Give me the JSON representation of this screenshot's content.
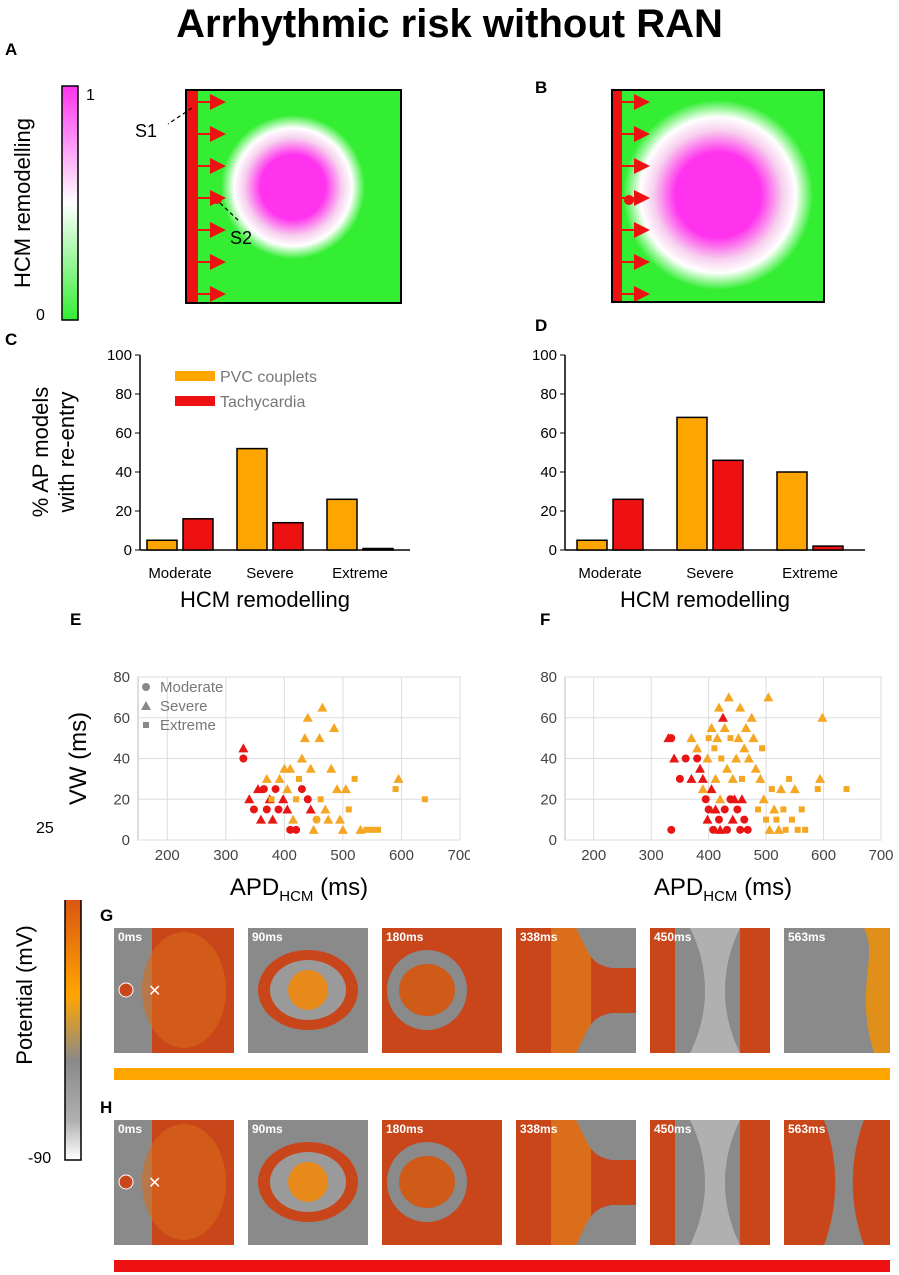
{
  "title": "Arrhythmic risk without RAN",
  "panel_labels": {
    "A": "A",
    "B": "B",
    "C": "C",
    "D": "D",
    "E": "E",
    "F": "F",
    "G": "G",
    "H": "H"
  },
  "colorbar_hcm": {
    "label": "HCM remodelling",
    "max": "1",
    "min": "0",
    "colors": [
      "#33ee33",
      "#ffffff",
      "#ff33ee"
    ]
  },
  "tissue": {
    "s1_label": "S1",
    "s2_label": "S2",
    "healthy_color": "#33ee33",
    "core_color": "#ff33ee",
    "stim_color": "#ee1111"
  },
  "colorbar_potential": {
    "label": "Potential (mV)",
    "max": "25",
    "min": "-90"
  },
  "colors": {
    "pvc": "#ffa500",
    "tachy": "#ee1111",
    "scatter_orange": "#f5a623",
    "scatter_red": "#e81515"
  },
  "snapshot_times": [
    "0ms",
    "90ms",
    "180ms",
    "338ms",
    "450ms",
    "563ms"
  ],
  "chart_data": [
    {
      "id": "C",
      "type": "bar",
      "categories": [
        "Moderate",
        "Severe",
        "Extreme"
      ],
      "series": [
        {
          "name": "PVC couplets",
          "values": [
            5,
            52,
            26
          ]
        },
        {
          "name": "Tachycardia",
          "values": [
            16,
            14,
            0.5
          ]
        }
      ],
      "ylabel": "% AP models with re-entry",
      "xlabel": "HCM remodelling",
      "ylim": [
        0,
        100
      ],
      "yticks": [
        "0",
        "20",
        "40",
        "60",
        "80",
        "100"
      ],
      "legend": "top-left"
    },
    {
      "id": "D",
      "type": "bar",
      "categories": [
        "Moderate",
        "Severe",
        "Extreme"
      ],
      "series": [
        {
          "name": "PVC couplets",
          "values": [
            5,
            68,
            40
          ]
        },
        {
          "name": "Tachycardia",
          "values": [
            26,
            46,
            2
          ]
        }
      ],
      "ylabel": "",
      "xlabel": "HCM remodelling",
      "ylim": [
        0,
        100
      ],
      "yticks": [
        "0",
        "20",
        "40",
        "60",
        "80",
        "100"
      ]
    },
    {
      "id": "E",
      "type": "scatter",
      "ylabel": "VW (ms)",
      "xlabel_main": "APD",
      "xlabel_sub": "HCM",
      "xlabel_unit": "(ms)",
      "xlim": [
        150,
        700
      ],
      "ylim": [
        0,
        80
      ],
      "xticks": [
        "200",
        "300",
        "400",
        "500",
        "600",
        "700"
      ],
      "yticks": [
        "0",
        "20",
        "40",
        "60",
        "80"
      ],
      "legend": [
        "Moderate",
        "Severe",
        "Extreme"
      ],
      "points": [
        {
          "x": 330,
          "y": 45,
          "s": "t",
          "c": "r"
        },
        {
          "x": 330,
          "y": 40,
          "s": "c",
          "c": "r"
        },
        {
          "x": 340,
          "y": 20,
          "s": "t",
          "c": "r"
        },
        {
          "x": 348,
          "y": 15,
          "s": "c",
          "c": "r"
        },
        {
          "x": 355,
          "y": 25,
          "s": "t",
          "c": "r"
        },
        {
          "x": 360,
          "y": 10,
          "s": "t",
          "c": "r"
        },
        {
          "x": 365,
          "y": 25,
          "s": "c",
          "c": "r"
        },
        {
          "x": 370,
          "y": 15,
          "s": "c",
          "c": "r"
        },
        {
          "x": 375,
          "y": 20,
          "s": "t",
          "c": "r"
        },
        {
          "x": 380,
          "y": 10,
          "s": "t",
          "c": "r"
        },
        {
          "x": 385,
          "y": 25,
          "s": "c",
          "c": "r"
        },
        {
          "x": 390,
          "y": 15,
          "s": "c",
          "c": "r"
        },
        {
          "x": 398,
          "y": 20,
          "s": "t",
          "c": "r"
        },
        {
          "x": 405,
          "y": 15,
          "s": "t",
          "c": "r"
        },
        {
          "x": 410,
          "y": 5,
          "s": "c",
          "c": "r"
        },
        {
          "x": 420,
          "y": 5,
          "s": "c",
          "c": "r"
        },
        {
          "x": 430,
          "y": 25,
          "s": "c",
          "c": "r"
        },
        {
          "x": 440,
          "y": 20,
          "s": "c",
          "c": "r"
        },
        {
          "x": 445,
          "y": 15,
          "s": "t",
          "c": "r"
        },
        {
          "x": 370,
          "y": 30,
          "s": "t",
          "c": "o"
        },
        {
          "x": 378,
          "y": 20,
          "s": "s",
          "c": "o"
        },
        {
          "x": 392,
          "y": 30,
          "s": "t",
          "c": "o"
        },
        {
          "x": 400,
          "y": 35,
          "s": "t",
          "c": "o"
        },
        {
          "x": 405,
          "y": 25,
          "s": "t",
          "c": "o"
        },
        {
          "x": 410,
          "y": 35,
          "s": "t",
          "c": "o"
        },
        {
          "x": 415,
          "y": 10,
          "s": "t",
          "c": "o"
        },
        {
          "x": 420,
          "y": 20,
          "s": "s",
          "c": "o"
        },
        {
          "x": 425,
          "y": 30,
          "s": "s",
          "c": "o"
        },
        {
          "x": 430,
          "y": 40,
          "s": "t",
          "c": "o"
        },
        {
          "x": 435,
          "y": 50,
          "s": "t",
          "c": "o"
        },
        {
          "x": 440,
          "y": 60,
          "s": "t",
          "c": "o"
        },
        {
          "x": 445,
          "y": 35,
          "s": "t",
          "c": "o"
        },
        {
          "x": 450,
          "y": 5,
          "s": "t",
          "c": "o"
        },
        {
          "x": 455,
          "y": 10,
          "s": "c",
          "c": "o"
        },
        {
          "x": 460,
          "y": 50,
          "s": "t",
          "c": "o"
        },
        {
          "x": 462,
          "y": 20,
          "s": "s",
          "c": "o"
        },
        {
          "x": 465,
          "y": 65,
          "s": "t",
          "c": "o"
        },
        {
          "x": 470,
          "y": 15,
          "s": "t",
          "c": "o"
        },
        {
          "x": 475,
          "y": 10,
          "s": "t",
          "c": "o"
        },
        {
          "x": 480,
          "y": 35,
          "s": "t",
          "c": "o"
        },
        {
          "x": 485,
          "y": 55,
          "s": "t",
          "c": "o"
        },
        {
          "x": 490,
          "y": 25,
          "s": "t",
          "c": "o"
        },
        {
          "x": 495,
          "y": 10,
          "s": "t",
          "c": "o"
        },
        {
          "x": 500,
          "y": 5,
          "s": "t",
          "c": "o"
        },
        {
          "x": 505,
          "y": 25,
          "s": "t",
          "c": "o"
        },
        {
          "x": 510,
          "y": 15,
          "s": "s",
          "c": "o"
        },
        {
          "x": 520,
          "y": 30,
          "s": "s",
          "c": "o"
        },
        {
          "x": 530,
          "y": 5,
          "s": "t",
          "c": "o"
        },
        {
          "x": 540,
          "y": 5,
          "s": "s",
          "c": "o"
        },
        {
          "x": 550,
          "y": 5,
          "s": "s",
          "c": "o"
        },
        {
          "x": 560,
          "y": 5,
          "s": "s",
          "c": "o"
        },
        {
          "x": 590,
          "y": 25,
          "s": "s",
          "c": "o"
        },
        {
          "x": 595,
          "y": 30,
          "s": "t",
          "c": "o"
        },
        {
          "x": 640,
          "y": 20,
          "s": "s",
          "c": "o"
        }
      ]
    },
    {
      "id": "F",
      "type": "scatter",
      "ylabel": "",
      "xlabel_main": "APD",
      "xlabel_sub": "HCM",
      "xlabel_unit": "(ms)",
      "xlim": [
        150,
        700
      ],
      "ylim": [
        0,
        80
      ],
      "xticks": [
        "200",
        "300",
        "400",
        "500",
        "600",
        "700"
      ],
      "yticks": [
        "0",
        "20",
        "40",
        "60",
        "80"
      ],
      "points": [
        {
          "x": 330,
          "y": 50,
          "s": "t",
          "c": "r"
        },
        {
          "x": 335,
          "y": 50,
          "s": "c",
          "c": "r"
        },
        {
          "x": 340,
          "y": 40,
          "s": "t",
          "c": "r"
        },
        {
          "x": 335,
          "y": 5,
          "s": "c",
          "c": "r"
        },
        {
          "x": 350,
          "y": 30,
          "s": "c",
          "c": "r"
        },
        {
          "x": 360,
          "y": 40,
          "s": "c",
          "c": "r"
        },
        {
          "x": 370,
          "y": 30,
          "s": "t",
          "c": "r"
        },
        {
          "x": 380,
          "y": 40,
          "s": "c",
          "c": "r"
        },
        {
          "x": 385,
          "y": 35,
          "s": "t",
          "c": "r"
        },
        {
          "x": 390,
          "y": 30,
          "s": "t",
          "c": "r"
        },
        {
          "x": 395,
          "y": 20,
          "s": "c",
          "c": "r"
        },
        {
          "x": 398,
          "y": 10,
          "s": "t",
          "c": "r"
        },
        {
          "x": 400,
          "y": 15,
          "s": "c",
          "c": "r"
        },
        {
          "x": 405,
          "y": 25,
          "s": "t",
          "c": "r"
        },
        {
          "x": 408,
          "y": 5,
          "s": "c",
          "c": "r"
        },
        {
          "x": 412,
          "y": 15,
          "s": "t",
          "c": "r"
        },
        {
          "x": 418,
          "y": 10,
          "s": "c",
          "c": "r"
        },
        {
          "x": 420,
          "y": 5,
          "s": "t",
          "c": "r"
        },
        {
          "x": 425,
          "y": 60,
          "s": "t",
          "c": "r"
        },
        {
          "x": 428,
          "y": 15,
          "s": "c",
          "c": "r"
        },
        {
          "x": 432,
          "y": 5,
          "s": "c",
          "c": "r"
        },
        {
          "x": 438,
          "y": 20,
          "s": "c",
          "c": "r"
        },
        {
          "x": 442,
          "y": 10,
          "s": "t",
          "c": "r"
        },
        {
          "x": 445,
          "y": 20,
          "s": "t",
          "c": "r"
        },
        {
          "x": 450,
          "y": 15,
          "s": "c",
          "c": "r"
        },
        {
          "x": 455,
          "y": 5,
          "s": "c",
          "c": "r"
        },
        {
          "x": 458,
          "y": 20,
          "s": "t",
          "c": "r"
        },
        {
          "x": 462,
          "y": 10,
          "s": "c",
          "c": "r"
        },
        {
          "x": 468,
          "y": 5,
          "s": "c",
          "c": "r"
        },
        {
          "x": 370,
          "y": 50,
          "s": "t",
          "c": "o"
        },
        {
          "x": 380,
          "y": 45,
          "s": "t",
          "c": "o"
        },
        {
          "x": 390,
          "y": 25,
          "s": "t",
          "c": "o"
        },
        {
          "x": 398,
          "y": 40,
          "s": "t",
          "c": "o"
        },
        {
          "x": 400,
          "y": 50,
          "s": "s",
          "c": "o"
        },
        {
          "x": 405,
          "y": 55,
          "s": "t",
          "c": "o"
        },
        {
          "x": 410,
          "y": 45,
          "s": "s",
          "c": "o"
        },
        {
          "x": 412,
          "y": 30,
          "s": "t",
          "c": "o"
        },
        {
          "x": 415,
          "y": 50,
          "s": "t",
          "c": "o"
        },
        {
          "x": 418,
          "y": 65,
          "s": "t",
          "c": "o"
        },
        {
          "x": 420,
          "y": 20,
          "s": "t",
          "c": "o"
        },
        {
          "x": 422,
          "y": 40,
          "s": "s",
          "c": "o"
        },
        {
          "x": 428,
          "y": 55,
          "s": "t",
          "c": "o"
        },
        {
          "x": 432,
          "y": 35,
          "s": "t",
          "c": "o"
        },
        {
          "x": 435,
          "y": 70,
          "s": "t",
          "c": "o"
        },
        {
          "x": 438,
          "y": 50,
          "s": "s",
          "c": "o"
        },
        {
          "x": 442,
          "y": 30,
          "s": "t",
          "c": "o"
        },
        {
          "x": 448,
          "y": 40,
          "s": "t",
          "c": "o"
        },
        {
          "x": 452,
          "y": 50,
          "s": "t",
          "c": "o"
        },
        {
          "x": 455,
          "y": 65,
          "s": "t",
          "c": "o"
        },
        {
          "x": 458,
          "y": 30,
          "s": "s",
          "c": "o"
        },
        {
          "x": 462,
          "y": 45,
          "s": "t",
          "c": "o"
        },
        {
          "x": 465,
          "y": 55,
          "s": "t",
          "c": "o"
        },
        {
          "x": 470,
          "y": 40,
          "s": "t",
          "c": "o"
        },
        {
          "x": 475,
          "y": 60,
          "s": "t",
          "c": "o"
        },
        {
          "x": 478,
          "y": 50,
          "s": "t",
          "c": "o"
        },
        {
          "x": 482,
          "y": 35,
          "s": "t",
          "c": "o"
        },
        {
          "x": 486,
          "y": 15,
          "s": "s",
          "c": "o"
        },
        {
          "x": 490,
          "y": 30,
          "s": "t",
          "c": "o"
        },
        {
          "x": 493,
          "y": 45,
          "s": "s",
          "c": "o"
        },
        {
          "x": 496,
          "y": 20,
          "s": "t",
          "c": "o"
        },
        {
          "x": 500,
          "y": 10,
          "s": "s",
          "c": "o"
        },
        {
          "x": 504,
          "y": 70,
          "s": "t",
          "c": "o"
        },
        {
          "x": 506,
          "y": 5,
          "s": "t",
          "c": "o"
        },
        {
          "x": 510,
          "y": 25,
          "s": "s",
          "c": "o"
        },
        {
          "x": 514,
          "y": 15,
          "s": "t",
          "c": "o"
        },
        {
          "x": 518,
          "y": 10,
          "s": "s",
          "c": "o"
        },
        {
          "x": 522,
          "y": 5,
          "s": "t",
          "c": "o"
        },
        {
          "x": 526,
          "y": 25,
          "s": "t",
          "c": "o"
        },
        {
          "x": 530,
          "y": 15,
          "s": "s",
          "c": "o"
        },
        {
          "x": 534,
          "y": 5,
          "s": "s",
          "c": "o"
        },
        {
          "x": 540,
          "y": 30,
          "s": "s",
          "c": "o"
        },
        {
          "x": 545,
          "y": 10,
          "s": "s",
          "c": "o"
        },
        {
          "x": 550,
          "y": 25,
          "s": "t",
          "c": "o"
        },
        {
          "x": 555,
          "y": 5,
          "s": "s",
          "c": "o"
        },
        {
          "x": 562,
          "y": 15,
          "s": "s",
          "c": "o"
        },
        {
          "x": 568,
          "y": 5,
          "s": "s",
          "c": "o"
        },
        {
          "x": 590,
          "y": 25,
          "s": "s",
          "c": "o"
        },
        {
          "x": 594,
          "y": 30,
          "s": "t",
          "c": "o"
        },
        {
          "x": 598,
          "y": 60,
          "s": "t",
          "c": "o"
        },
        {
          "x": 640,
          "y": 25,
          "s": "s",
          "c": "o"
        }
      ]
    }
  ]
}
